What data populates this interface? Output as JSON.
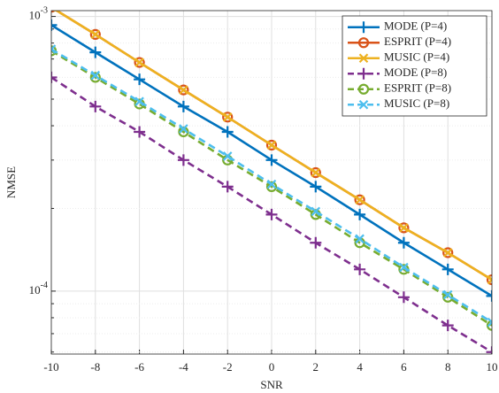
{
  "chart_data": {
    "type": "line",
    "xlabel": "SNR",
    "ylabel": "NMSE",
    "x": [
      -10,
      -8,
      -6,
      -4,
      -2,
      0,
      2,
      4,
      6,
      8,
      10
    ],
    "xlim": [
      -10,
      10
    ],
    "xticks": [
      -10,
      -8,
      -6,
      -4,
      -2,
      0,
      2,
      4,
      6,
      8,
      10
    ],
    "ylim": [
      5.9e-05,
      0.00105
    ],
    "log_y": true,
    "yticks": [
      {
        "value": 0.001,
        "label": "10^-3"
      },
      {
        "value": 0.0001,
        "label": "10^-4"
      }
    ],
    "minor_yticks": [
      6e-05,
      7e-05,
      8e-05,
      9e-05,
      0.0002,
      0.0003,
      0.0004,
      0.0005,
      0.0006,
      0.0007,
      0.0008,
      0.0009
    ],
    "grid": true,
    "legend": "top-right",
    "series": [
      {
        "name": "MODE (P=4)",
        "color": "#0072BD",
        "marker": "plus",
        "linestyle": "solid",
        "values": [
          0.00093,
          0.00074,
          0.00059,
          0.00047,
          0.00038,
          0.0003,
          0.00024,
          0.00019,
          0.00015,
          0.00012,
          9.6e-05
        ]
      },
      {
        "name": "ESPRIT (P=4)",
        "color": "#D95319",
        "marker": "circle",
        "linestyle": "solid",
        "values": [
          0.00108,
          0.00086,
          0.00068,
          0.00054,
          0.00043,
          0.00034,
          0.00027,
          0.000215,
          0.00017,
          0.000138,
          0.00011
        ]
      },
      {
        "name": "MUSIC (P=4)",
        "color": "#EDB120",
        "marker": "x",
        "linestyle": "solid",
        "values": [
          0.00108,
          0.00086,
          0.00068,
          0.00054,
          0.00043,
          0.00034,
          0.00027,
          0.000215,
          0.00017,
          0.000138,
          0.00011
        ]
      },
      {
        "name": "MODE (P=8)",
        "color": "#7E2F8E",
        "marker": "plus",
        "linestyle": "dashed",
        "values": [
          0.0006,
          0.00047,
          0.00038,
          0.0003,
          0.00024,
          0.00019,
          0.00015,
          0.00012,
          9.5e-05,
          7.5e-05,
          6e-05
        ]
      },
      {
        "name": "ESPRIT (P=8)",
        "color": "#77AC30",
        "marker": "circle",
        "linestyle": "dashed",
        "values": [
          0.00075,
          0.0006,
          0.00048,
          0.00038,
          0.0003,
          0.00024,
          0.00019,
          0.00015,
          0.00012,
          9.5e-05,
          7.5e-05
        ]
      },
      {
        "name": "MUSIC (P=8)",
        "color": "#4DBEEE",
        "marker": "x",
        "linestyle": "dashed",
        "values": [
          0.00076,
          0.00061,
          0.00049,
          0.00039,
          0.00031,
          0.000245,
          0.000195,
          0.000155,
          0.000122,
          9.7e-05,
          7.7e-05
        ]
      }
    ]
  }
}
